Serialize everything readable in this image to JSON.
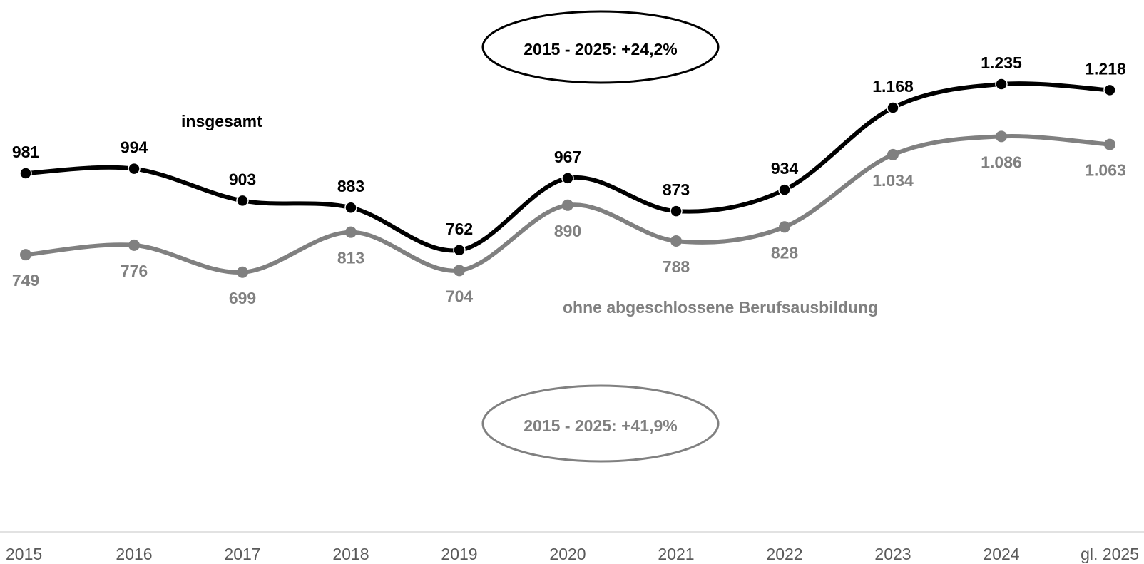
{
  "chart_data": {
    "type": "line",
    "categories": [
      "2015",
      "2016",
      "2017",
      "2018",
      "2019",
      "2020",
      "2021",
      "2022",
      "2023",
      "2024",
      "gl. 2025"
    ],
    "series": [
      {
        "name": "insgesamt",
        "color": "#000000",
        "values": [
          981,
          994,
          903,
          883,
          762,
          967,
          873,
          934,
          1168,
          1235,
          1218
        ],
        "labels": [
          "981",
          "994",
          "903",
          "883",
          "762",
          "967",
          "873",
          "934",
          "1.168",
          "1.235",
          "1.218"
        ]
      },
      {
        "name": "ohne abgeschlossene Berufsausbildung",
        "color": "#808080",
        "values": [
          749,
          776,
          699,
          813,
          704,
          890,
          788,
          828,
          1034,
          1086,
          1063
        ],
        "labels": [
          "749",
          "776",
          "699",
          "813",
          "704",
          "890",
          "788",
          "828",
          "1.034",
          "1.086",
          "1.063"
        ]
      }
    ],
    "annotations": [
      {
        "text": "2015 - 2025: +24,2%",
        "color": "#000000"
      },
      {
        "text": "2015 - 2025: +41,9%",
        "color": "#808080"
      }
    ],
    "title": "",
    "xlabel": "",
    "ylabel": "",
    "grid": false
  }
}
